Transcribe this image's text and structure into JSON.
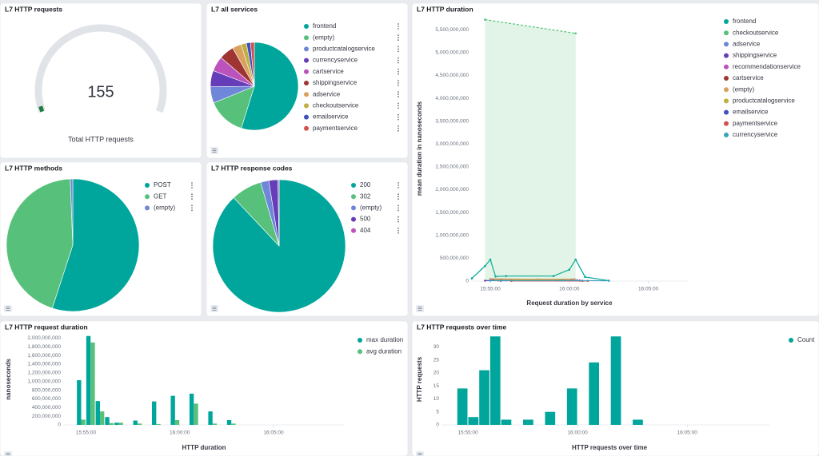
{
  "chart_data": [
    {
      "type": "gauge",
      "title": "L7 HTTP requests",
      "value": 155,
      "label": "Total HTTP requests",
      "color": "#1e7b40"
    },
    {
      "type": "pie",
      "title": "L7 all services",
      "categories": [
        "frontend",
        "(empty)",
        "productcatalogservice",
        "currencyservice",
        "cartservice",
        "shippingservice",
        "adservice",
        "checkoutservice",
        "emailservice",
        "paymentservice"
      ],
      "values": [
        54.8,
        14,
        6,
        6,
        5.5,
        5.5,
        3.3,
        2,
        1.5,
        1.4
      ],
      "colors": [
        "#00a69b",
        "#57c17b",
        "#6f87d8",
        "#663db8",
        "#bc52bc",
        "#9e3533",
        "#daa05d",
        "#bfaf40",
        "#4050be",
        "#d3504e"
      ]
    },
    {
      "type": "line",
      "title": "L7 HTTP duration",
      "ylabel": "mean duration in nanoseconds",
      "xlabel": "Request duration by service",
      "xlim": [
        "15:53:50",
        "16:07:30"
      ],
      "xticks": [
        "15:55:00",
        "16:00:00",
        "16:05:00"
      ],
      "ylim": [
        0,
        5800000000
      ],
      "yticks": [
        0,
        {
          "value": 500000000,
          "label": "500,000,000"
        },
        {
          "value": 1000000000,
          "label": "1,000,000,000"
        },
        {
          "value": 1500000000,
          "label": "1,500,000,000"
        },
        {
          "value": 2000000000,
          "label": "2,000,000,000"
        },
        {
          "value": 2500000000,
          "label": "2,500,000,000"
        },
        {
          "value": 3000000000,
          "label": "3,000,000,000"
        },
        {
          "value": 3500000000,
          "label": "3,500,000,000"
        },
        {
          "value": 4000000000,
          "label": "4,000,000,000"
        },
        {
          "value": 4500000000,
          "label": "4,500,000,000"
        },
        {
          "value": 5000000000,
          "label": "5,000,000,000"
        },
        {
          "value": 5500000000,
          "label": "5,500,000,000"
        }
      ],
      "series": [
        {
          "name": "frontend",
          "color": "#00a69b",
          "x": [
            "15:53:50",
            "15:54:40",
            "15:55:00",
            "15:55:20",
            "15:56:00",
            "15:59:00",
            "16:00:00",
            "16:00:24",
            "16:01:00",
            "16:02:30"
          ],
          "values": [
            60000000,
            330000000,
            470000000,
            100000000,
            110000000,
            110000000,
            250000000,
            470000000,
            90000000,
            10000000
          ]
        },
        {
          "name": "checkoutservice",
          "color": "#57c17b",
          "dashed": true,
          "area": true,
          "x": [
            "15:54:40",
            "16:00:24"
          ],
          "values": [
            5720000000,
            5420000000
          ]
        },
        {
          "name": "adservice",
          "color": "#6f87d8",
          "x": [
            "15:55:00",
            "16:00:30"
          ],
          "values": [
            30000000,
            20000000
          ]
        },
        {
          "name": "shippingservice",
          "color": "#663db8",
          "x": [
            "15:54:40",
            "15:56:00",
            "16:00:00"
          ],
          "values": [
            10000000,
            20000000,
            15000000
          ]
        },
        {
          "name": "recommendationservice",
          "color": "#bc52bc",
          "x": [
            "15:55:10",
            "16:00:10"
          ],
          "values": [
            40000000,
            35000000
          ]
        },
        {
          "name": "cartservice",
          "color": "#9e3533",
          "x": [
            "15:55:30",
            "16:00:40"
          ],
          "values": [
            15000000,
            12000000
          ]
        },
        {
          "name": "(empty)",
          "color": "#daa05d",
          "x": [
            "15:55:00",
            "15:58:00",
            "16:00:20"
          ],
          "values": [
            50000000,
            40000000,
            45000000
          ]
        },
        {
          "name": "productcatalogservice",
          "color": "#bfaf40",
          "x": [
            "15:55:20",
            "15:57:00",
            "16:00:00"
          ],
          "values": [
            20000000,
            25000000,
            20000000
          ]
        },
        {
          "name": "emailservice",
          "color": "#4050be",
          "x": [
            "15:55:40",
            "16:00:50"
          ],
          "values": [
            8000000,
            6000000
          ]
        },
        {
          "name": "paymentservice",
          "color": "#d3504e",
          "x": [
            "15:56:20",
            "16:01:10"
          ],
          "values": [
            5000000,
            5000000
          ]
        },
        {
          "name": "currencyservice",
          "color": "#36a2bc",
          "x": [
            "15:55:00",
            "15:59:30",
            "16:02:30"
          ],
          "values": [
            10000000,
            12000000,
            8000000
          ]
        }
      ]
    },
    {
      "type": "pie",
      "title": "L7 HTTP methods",
      "categories": [
        "POST",
        "GET",
        "(empty)"
      ],
      "values": [
        55,
        44.4,
        0.6
      ],
      "colors": [
        "#00a69b",
        "#57c17b",
        "#6f87d8"
      ]
    },
    {
      "type": "pie",
      "title": "L7 HTTP response codes",
      "categories": [
        "200",
        "302",
        "(empty)",
        "500",
        "404"
      ],
      "values": [
        88,
        7.5,
        2,
        2.2,
        0.3
      ],
      "colors": [
        "#00a69b",
        "#57c17b",
        "#6f87d8",
        "#663db8",
        "#bc52bc"
      ]
    },
    {
      "type": "bar",
      "title": "L7 HTTP request duration",
      "ylabel": "nanoseconds",
      "xlabel": "HTTP duration",
      "xlim": [
        "15:53:50",
        "16:08:45"
      ],
      "xticks": [
        "15:55:00",
        "16:00:00",
        "16:05:00"
      ],
      "ylim": [
        0,
        2100000000
      ],
      "yticks": [
        0,
        {
          "value": 200000000,
          "label": "200,000,000"
        },
        {
          "value": 400000000,
          "label": "400,000,000"
        },
        {
          "value": 600000000,
          "label": "600,000,000"
        },
        {
          "value": 800000000,
          "label": "800,000,000"
        },
        {
          "value": 1000000000,
          "label": "1,000,000,000"
        },
        {
          "value": 1200000000,
          "label": "1,200,000,000"
        },
        {
          "value": 1400000000,
          "label": "1,400,000,000"
        },
        {
          "value": 1600000000,
          "label": "1,600,000,000"
        },
        {
          "value": 1800000000,
          "label": "1,800,000,000"
        },
        {
          "value": 2000000000,
          "label": "2,000,000,000"
        }
      ],
      "x": [
        "15:54:30",
        "15:55:00",
        "15:55:30",
        "15:56:00",
        "15:56:30",
        "15:57:30",
        "15:58:30",
        "15:59:30",
        "16:00:30",
        "16:01:30",
        "16:02:30"
      ],
      "series": [
        {
          "name": "max duration",
          "color": "#00a69b",
          "values": [
            1030000000,
            2050000000,
            550000000,
            180000000,
            50000000,
            100000000,
            540000000,
            670000000,
            720000000,
            310000000,
            110000000
          ]
        },
        {
          "name": "avg duration",
          "color": "#57c17b",
          "values": [
            120000000,
            1900000000,
            310000000,
            40000000,
            50000000,
            30000000,
            20000000,
            110000000,
            490000000,
            30000000,
            30000000
          ]
        }
      ]
    },
    {
      "type": "bar",
      "title": "L7 HTTP requests over time",
      "ylabel": "HTTP requests",
      "xlabel": "HTTP requests over time",
      "xlim": [
        "15:53:50",
        "16:08:45"
      ],
      "xticks": [
        "15:55:00",
        "16:00:00",
        "16:05:00"
      ],
      "ylim": [
        0,
        35
      ],
      "yticks": [
        0,
        5,
        10,
        15,
        20,
        25,
        30
      ],
      "x": [
        "15:54:30",
        "15:55:00",
        "15:55:30",
        "15:56:00",
        "15:56:30",
        "15:57:30",
        "15:58:30",
        "15:59:30",
        "16:00:30",
        "16:01:30",
        "16:02:30"
      ],
      "series": [
        {
          "name": "Count",
          "color": "#00a69b",
          "values": [
            14,
            3,
            21,
            34,
            2,
            2,
            5,
            14,
            24,
            34,
            2
          ]
        }
      ]
    }
  ]
}
